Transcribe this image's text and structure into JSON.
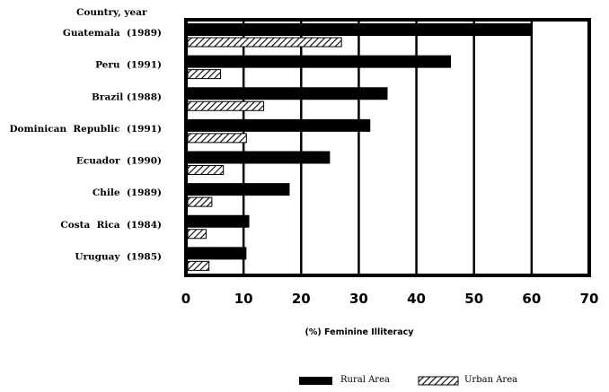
{
  "chart_data": {
    "type": "bar",
    "orientation": "horizontal",
    "y_header": "Country, year",
    "xlabel": "(%) Feminine Illiteracy",
    "ylabel": "",
    "xlim": [
      0,
      70
    ],
    "x_ticks": [
      "0",
      "10",
      "20",
      "30",
      "40",
      "50",
      "60",
      "70"
    ],
    "grid": true,
    "legend_position": "bottom-right",
    "categories": [
      "Guatemala  (1989)",
      "Peru  (1991)",
      "Brazil (1988)",
      "Dominican  Republic  (1991)",
      "Ecuador  (1990)",
      "Chile  (1989)",
      "Costa  Rica  (1984)",
      "Uruguay  (1985)"
    ],
    "series": [
      {
        "name": "Rural Area",
        "pattern": "solid",
        "values": [
          60,
          46,
          35,
          32,
          25,
          18,
          11,
          10.5
        ]
      },
      {
        "name": "Urban Area",
        "pattern": "hatched",
        "values": [
          27,
          6,
          13.5,
          10.5,
          6.5,
          4.5,
          3.5,
          4
        ]
      }
    ],
    "colors": {
      "bar": "#000000",
      "background": "#ffffff"
    }
  }
}
